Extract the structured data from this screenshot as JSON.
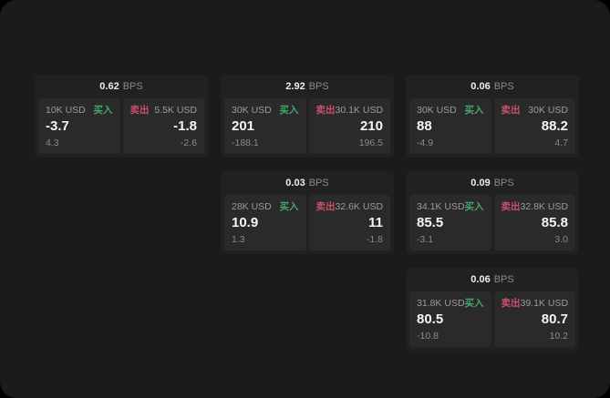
{
  "colors": {
    "page_background": "#1b1b1b",
    "card_background": "#212121",
    "panel_background": "#2a2a2b",
    "buy_green": "#44a869",
    "sell_red": "#c9506a",
    "primary_text": "#f5f5f5",
    "muted_text": "#9b9b9b"
  },
  "cards": [
    {
      "bps_value": "0.62",
      "bps_unit": "BPS",
      "buy": {
        "amount": "10K USD",
        "label": "买入",
        "price": "-3.7",
        "delta": "4.3"
      },
      "sell": {
        "amount": "5.5K USD",
        "label": "卖出",
        "price": "-1.8",
        "delta": "-2.6"
      }
    },
    {
      "bps_value": "2.92",
      "bps_unit": "BPS",
      "buy": {
        "amount": "30K USD",
        "label": "买入",
        "price": "201",
        "delta": "-188.1"
      },
      "sell": {
        "amount": "30.1K USD",
        "label": "卖出",
        "price": "210",
        "delta": "196.5"
      }
    },
    {
      "bps_value": "0.06",
      "bps_unit": "BPS",
      "buy": {
        "amount": "30K USD",
        "label": "买入",
        "price": "88",
        "delta": "-4.9"
      },
      "sell": {
        "amount": "30K USD",
        "label": "卖出",
        "price": "88.2",
        "delta": "4.7"
      }
    },
    {
      "bps_value": "0.03",
      "bps_unit": "BPS",
      "buy": {
        "amount": "28K USD",
        "label": "买入",
        "price": "10.9",
        "delta": "1.3"
      },
      "sell": {
        "amount": "32.6K USD",
        "label": "卖出",
        "price": "11",
        "delta": "-1.8"
      }
    },
    {
      "bps_value": "0.09",
      "bps_unit": "BPS",
      "buy": {
        "amount": "34.1K USD",
        "label": "买入",
        "price": "85.5",
        "delta": "-3.1"
      },
      "sell": {
        "amount": "32.8K USD",
        "label": "卖出",
        "price": "85.8",
        "delta": "3.0"
      }
    },
    {
      "bps_value": "0.06",
      "bps_unit": "BPS",
      "buy": {
        "amount": "31.8K USD",
        "label": "买入",
        "price": "80.5",
        "delta": "-10.8"
      },
      "sell": {
        "amount": "39.1K USD",
        "label": "卖出",
        "price": "80.7",
        "delta": "10.2"
      }
    }
  ]
}
